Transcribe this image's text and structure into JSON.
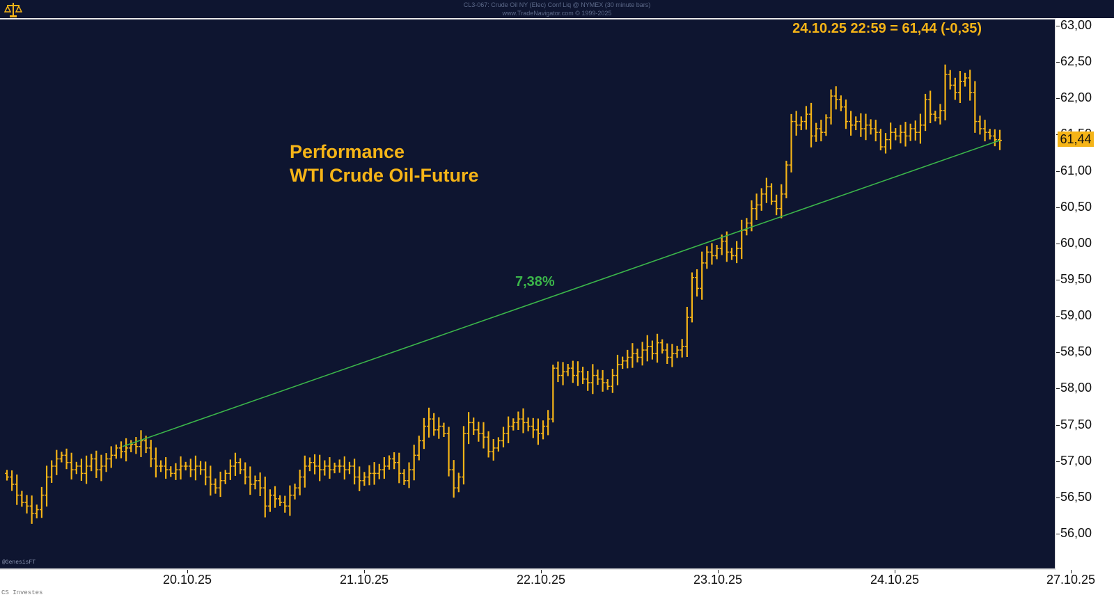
{
  "header": {
    "line1": "CL3-067: Crude Oil NY (Elec) Conf Liq @ NYMEX (30 minute bars)",
    "line2": "www.TradeNavigator.com © 1999-2025"
  },
  "quote_label": "24.10.25 22:59 = 61,44 (-0,35)",
  "title_line1": "Performance",
  "title_line2": "WTI Crude Oil-Future",
  "current_value_label": "61,44",
  "credit": "@GenesisFT",
  "footer": "CS Investes",
  "colors": {
    "background": "#0e1530",
    "bars": "#f5b417",
    "trendline": "#3bb54a"
  },
  "chart_data": {
    "type": "ohlc",
    "bar_interval": "30 minute",
    "ylim": [
      55.8,
      63.1
    ],
    "yticks": [
      "56,00",
      "56,50",
      "57,00",
      "57,50",
      "58,00",
      "58,50",
      "59,00",
      "59,50",
      "60,00",
      "60,50",
      "61,00",
      "61,50",
      "62,00",
      "62,50",
      "63,00"
    ],
    "x_dates": [
      "20.10.25",
      "21.10.25",
      "22.10.25",
      "23.10.25",
      "24.10.25",
      "27.10.25"
    ],
    "trendline": {
      "label": "7,38%",
      "start_price": 57.22,
      "end_price": 61.44
    },
    "series": [
      {
        "closes": [
          56.8,
          56.7,
          56.55,
          56.45,
          56.4,
          56.3,
          56.35,
          56.55,
          56.8,
          56.95,
          57.05,
          57.1,
          57.0,
          56.9,
          56.95,
          56.85,
          56.95,
          57.05,
          56.9,
          56.95,
          57.05,
          57.1,
          57.2,
          57.15,
          57.2,
          57.25,
          57.22,
          57.3,
          57.2,
          57.05,
          56.95,
          56.95,
          56.9,
          56.85,
          56.9,
          56.95,
          56.95,
          56.9,
          56.95,
          56.9,
          56.8,
          56.7,
          56.65,
          56.75,
          56.85,
          56.95,
          57.0,
          56.9,
          56.8,
          56.7,
          56.75,
          56.65,
          56.4,
          56.55,
          56.5,
          56.45,
          56.4,
          56.55,
          56.65,
          56.8,
          56.95,
          57.0,
          56.95,
          56.9,
          56.95,
          56.9,
          56.95,
          56.95,
          56.9,
          56.95,
          56.8,
          56.75,
          56.8,
          56.85,
          56.85,
          56.9,
          56.95,
          57.05,
          57.0,
          56.85,
          56.75,
          56.9,
          57.1,
          57.3,
          57.5,
          57.6,
          57.45,
          57.5,
          57.4,
          56.9,
          56.65,
          56.8,
          57.4,
          57.55,
          57.45,
          57.4,
          57.35,
          57.15,
          57.2,
          57.3,
          57.4,
          57.5,
          57.55,
          57.6,
          57.55,
          57.5,
          57.45,
          57.4,
          57.5,
          57.6,
          58.3,
          58.2,
          58.25,
          58.3,
          58.2,
          58.25,
          58.15,
          58.1,
          58.2,
          58.15,
          58.1,
          58.05,
          58.2,
          58.35,
          58.4,
          58.45,
          58.5,
          58.45,
          58.55,
          58.6,
          58.5,
          58.65,
          58.55,
          58.45,
          58.5,
          58.55,
          58.6,
          59.0,
          59.55,
          59.4,
          59.75,
          59.9,
          59.85,
          59.95,
          60.05,
          59.9,
          59.85,
          59.95,
          60.2,
          60.3,
          60.5,
          60.55,
          60.7,
          60.8,
          60.6,
          60.5,
          60.7,
          61.1,
          61.7,
          61.65,
          61.7,
          61.8,
          61.5,
          61.6,
          61.55,
          61.75,
          62.05,
          62.0,
          61.9,
          61.7,
          61.65,
          61.7,
          61.6,
          61.65,
          61.6,
          61.55,
          61.35,
          61.45,
          61.55,
          61.5,
          61.55,
          61.5,
          61.6,
          61.55,
          61.65,
          62.0,
          61.8,
          61.75,
          61.85,
          62.35,
          62.2,
          62.1,
          62.25,
          62.3,
          62.1,
          61.7,
          61.6,
          61.55,
          61.5,
          61.45,
          61.44
        ]
      }
    ]
  }
}
